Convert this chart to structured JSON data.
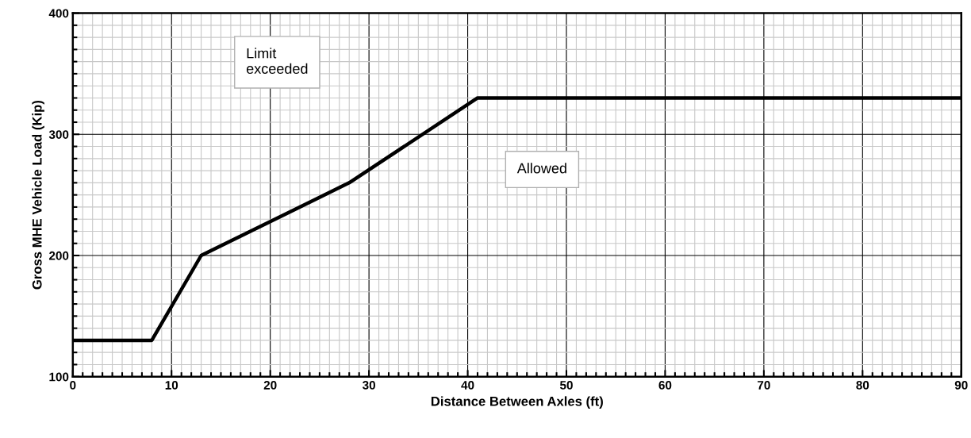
{
  "chart_data": {
    "type": "line",
    "xlabel": "Distance Between Axles (ft)",
    "ylabel": "Gross MHE Vehicle Load (Kip)",
    "x": [
      0,
      8,
      13,
      28,
      41,
      90
    ],
    "series": [
      {
        "color": "#000000",
        "values": [
          130,
          130,
          200,
          260,
          330,
          330
        ]
      }
    ],
    "xlim": [
      0,
      90
    ],
    "xticks": [
      0,
      10,
      20,
      30,
      40,
      50,
      60,
      70,
      80,
      90
    ],
    "ylim": [
      100,
      400
    ],
    "yticks": [
      100,
      200,
      300,
      400
    ],
    "grid": true,
    "marker": "none",
    "line_style": "solid",
    "legend": false,
    "annotations": [
      "Limit\nexceeded",
      "Allowed"
    ]
  }
}
